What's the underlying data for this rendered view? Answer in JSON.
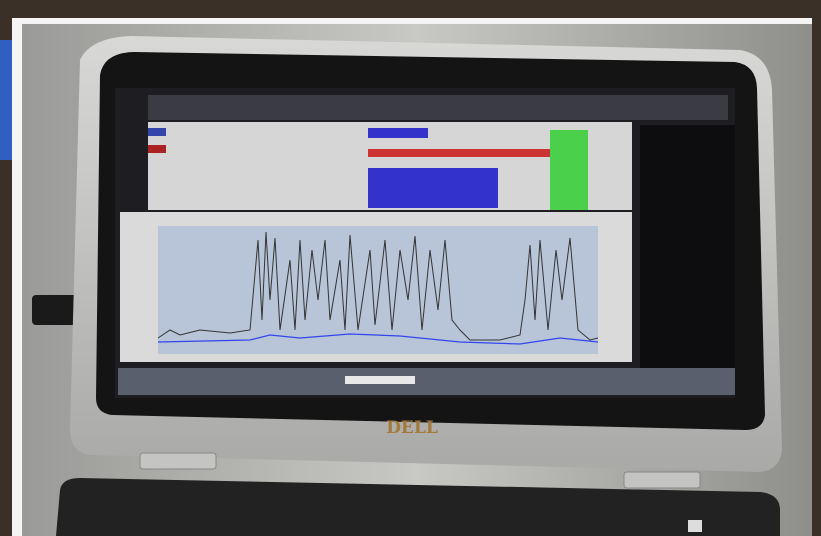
{
  "logo": {
    "text": "DELL"
  }
}
